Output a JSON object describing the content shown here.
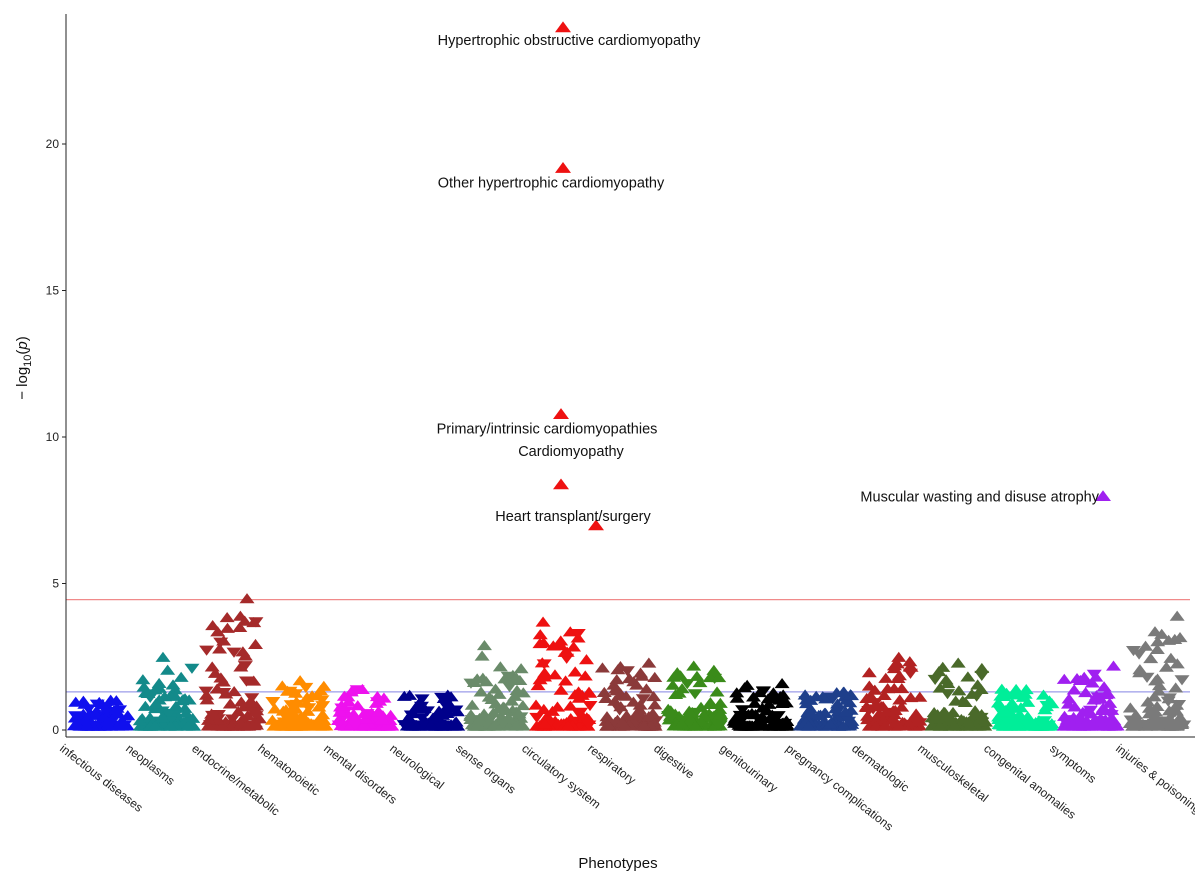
{
  "chart_data": {
    "type": "scatter",
    "title": "",
    "xlabel": "Phenotypes",
    "ylabel": "−log₁₀(p)",
    "ylabel_parts": {
      "prefix": "− log",
      "sub": "10",
      "open": "(",
      "var": "p",
      "close": ")"
    },
    "ylim": [
      0,
      24.5
    ],
    "yticks": [
      0,
      5,
      10,
      15,
      20
    ],
    "grid": false,
    "legend": "none",
    "thresholds": [
      {
        "value": 4.45,
        "color": "#f08a8a"
      },
      {
        "value": 1.3,
        "color": "#9c9ce8"
      }
    ],
    "categories": [
      {
        "name": "infectious diseases",
        "color": "#1010ee",
        "maxv": 1.0
      },
      {
        "name": "neoplasms",
        "color": "#138a8a",
        "maxv": 2.5
      },
      {
        "name": "endocrine/metabolic",
        "color": "#a52a2a",
        "maxv": 4.5
      },
      {
        "name": "hematopoietic",
        "color": "#ff8c00",
        "maxv": 1.7
      },
      {
        "name": "mental disorders",
        "color": "#ee11ee",
        "maxv": 1.4
      },
      {
        "name": "neurological",
        "color": "#00008b",
        "maxv": 1.2
      },
      {
        "name": "sense organs",
        "color": "#6a8b6a",
        "maxv": 2.9
      },
      {
        "name": "circulatory system",
        "color": "#ee1111",
        "maxv": 3.7
      },
      {
        "name": "respiratory",
        "color": "#8b3a3a",
        "maxv": 2.3
      },
      {
        "name": "digestive",
        "color": "#3a8b1a",
        "maxv": 2.2
      },
      {
        "name": "genitourinary",
        "color": "#000000",
        "maxv": 1.6
      },
      {
        "name": "pregnancy complications",
        "color": "#1e3f8b",
        "maxv": 1.3
      },
      {
        "name": "dermatologic",
        "color": "#b22222",
        "maxv": 2.5
      },
      {
        "name": "musculoskeletal",
        "color": "#4a6a2a",
        "maxv": 2.3
      },
      {
        "name": "congenital anomalies",
        "color": "#00ee99",
        "maxv": 1.4
      },
      {
        "name": "symptoms",
        "color": "#a020f0",
        "maxv": 2.2
      },
      {
        "name": "injuries & poisonings",
        "color": "#7a7a7a",
        "maxv": 3.9
      }
    ],
    "highlighted": [
      {
        "label": "Hypertrophic obstructive cardiomyopathy",
        "category": "circulatory system",
        "value": 24.0
      },
      {
        "label": "Other hypertrophic cardiomyopathy",
        "category": "circulatory system",
        "value": 19.2
      },
      {
        "label": "Primary/intrinsic cardiomyopathies",
        "category": "circulatory system",
        "value": 10.8
      },
      {
        "label": "Cardiomyopathy",
        "category": "circulatory system",
        "value": 8.4
      },
      {
        "label": "Heart transplant/surgery",
        "category": "circulatory system",
        "value": 7.0
      },
      {
        "label": "Muscular wasting and disuse atrophy",
        "category": "symptoms",
        "value": 8.0
      }
    ]
  }
}
